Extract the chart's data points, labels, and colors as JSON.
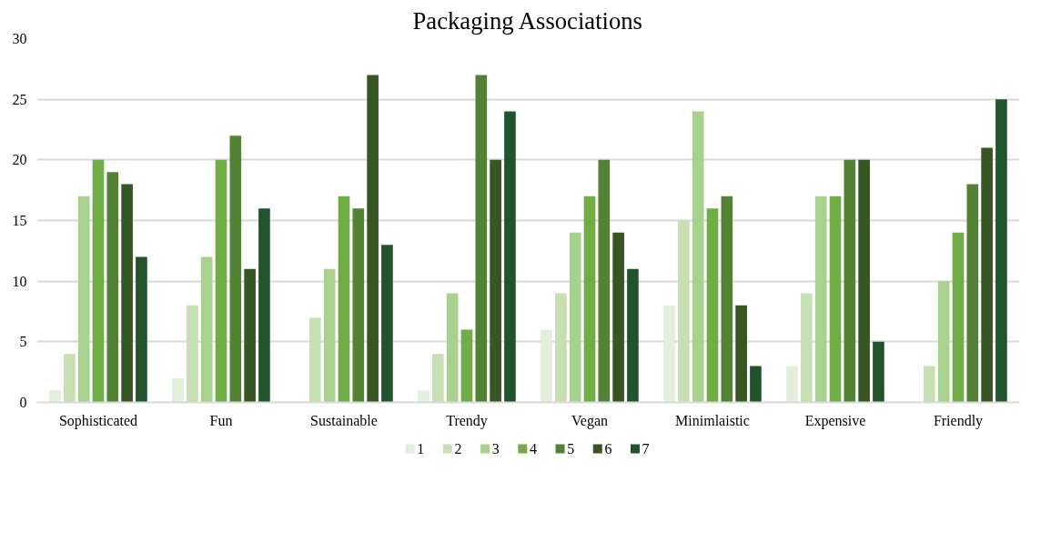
{
  "chart_data": {
    "type": "bar",
    "title": "Packaging Associations",
    "categories": [
      "Sophisticated",
      "Fun",
      "Sustainable",
      "Trendy",
      "Vegan",
      "Minimlaistic",
      "Expensive",
      "Friendly"
    ],
    "series": [
      {
        "name": "1",
        "color": "#e2efda",
        "values": [
          1,
          2,
          0,
          1,
          6,
          8,
          3,
          0
        ]
      },
      {
        "name": "2",
        "color": "#c6e0b4",
        "values": [
          4,
          8,
          7,
          4,
          9,
          15,
          9,
          3
        ]
      },
      {
        "name": "3",
        "color": "#a9d18e",
        "values": [
          17,
          12,
          11,
          9,
          14,
          24,
          17,
          10
        ]
      },
      {
        "name": "4",
        "color": "#70ad47",
        "values": [
          20,
          20,
          17,
          6,
          17,
          16,
          17,
          14
        ]
      },
      {
        "name": "5",
        "color": "#548235",
        "values": [
          19,
          22,
          16,
          27,
          20,
          17,
          20,
          18
        ]
      },
      {
        "name": "6",
        "color": "#375623",
        "values": [
          18,
          11,
          27,
          20,
          14,
          8,
          20,
          21
        ]
      },
      {
        "name": "7",
        "color": "#21542c",
        "values": [
          12,
          16,
          13,
          24,
          11,
          3,
          5,
          25
        ]
      }
    ],
    "ylim": [
      0,
      30
    ],
    "yticks": [
      0,
      5,
      10,
      15,
      20,
      25,
      30
    ],
    "grid": "y",
    "legend": "bottom"
  }
}
